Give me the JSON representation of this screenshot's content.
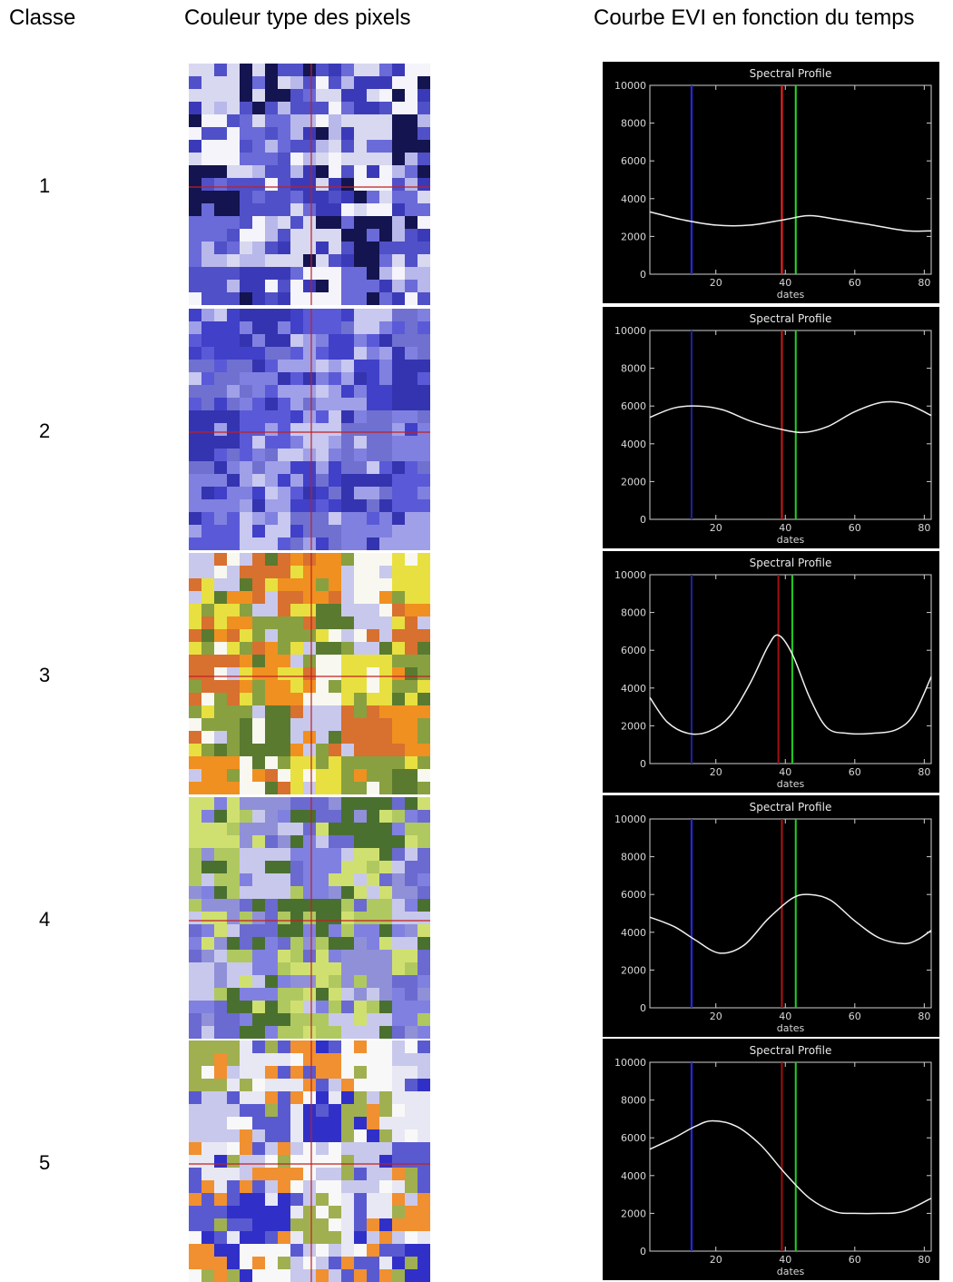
{
  "headers": {
    "classe": "Classe",
    "couleur": "Couleur type des pixels",
    "courbe": "Courbe EVI en fonction du temps"
  },
  "classes": [
    {
      "id": "1",
      "palette": [
        "#d8d8f0",
        "#6a6ad8",
        "#3a3ab8",
        "#141450",
        "#b8b8ea",
        "#f4f4fa",
        "#5050c8"
      ]
    },
    {
      "id": "2",
      "palette": [
        "#5a5ad8",
        "#4040c8",
        "#8080e0",
        "#c8c8f0",
        "#3434b0",
        "#a0a0e8",
        "#7070d0"
      ]
    },
    {
      "id": "3",
      "palette": [
        "#e8e040",
        "#f09020",
        "#c8c8ec",
        "#88a040",
        "#f8f8f0",
        "#d87030",
        "#5a7a30"
      ]
    },
    {
      "id": "4",
      "palette": [
        "#8080e0",
        "#b0c860",
        "#6a6ad0",
        "#d0e070",
        "#c8c8ec",
        "#4a7030",
        "#9090d8"
      ]
    },
    {
      "id": "5",
      "palette": [
        "#e8e8f4",
        "#3030c8",
        "#c8c8ec",
        "#f09030",
        "#a0b050",
        "#5a5ad0",
        "#f8f8f8"
      ]
    }
  ],
  "chart_data": [
    {
      "type": "line",
      "title": "Spectral Profile",
      "xlabel": "dates",
      "ylabel": "",
      "xlim": [
        1,
        82
      ],
      "ylim": [
        0,
        10000
      ],
      "xticks": [
        20,
        40,
        60,
        80
      ],
      "yticks": [
        0,
        2000,
        4000,
        6000,
        8000,
        10000
      ],
      "vlines": [
        {
          "x": 13,
          "color": "#2828ff"
        },
        {
          "x": 39,
          "color": "#ff2020"
        },
        {
          "x": 43,
          "color": "#20e020"
        }
      ],
      "x": [
        1,
        10,
        20,
        30,
        40,
        47,
        55,
        65,
        75,
        82
      ],
      "y": [
        3300,
        2900,
        2600,
        2600,
        2900,
        3100,
        2900,
        2600,
        2300,
        2300
      ]
    },
    {
      "type": "line",
      "title": "Spectral Profile",
      "xlabel": "dates",
      "ylabel": "",
      "xlim": [
        1,
        82
      ],
      "ylim": [
        0,
        10000
      ],
      "xticks": [
        20,
        40,
        60,
        80
      ],
      "yticks": [
        0,
        2000,
        4000,
        6000,
        8000,
        10000
      ],
      "vlines": [
        {
          "x": 13,
          "color": "#2020a0"
        },
        {
          "x": 39,
          "color": "#d01818"
        },
        {
          "x": 43,
          "color": "#20d020"
        }
      ],
      "x": [
        1,
        8,
        15,
        22,
        30,
        38,
        45,
        52,
        60,
        68,
        75,
        82
      ],
      "y": [
        5400,
        5900,
        6000,
        5800,
        5200,
        4800,
        4600,
        4900,
        5700,
        6200,
        6100,
        5500
      ]
    },
    {
      "type": "line",
      "title": "Spectral Profile",
      "xlabel": "dates",
      "ylabel": "",
      "xlim": [
        1,
        82
      ],
      "ylim": [
        0,
        10000
      ],
      "xticks": [
        20,
        40,
        60,
        80
      ],
      "yticks": [
        0,
        2000,
        4000,
        6000,
        8000,
        10000
      ],
      "vlines": [
        {
          "x": 13,
          "color": "#2020a0"
        },
        {
          "x": 38,
          "color": "#a01010"
        },
        {
          "x": 42,
          "color": "#20d020"
        }
      ],
      "x": [
        1,
        6,
        12,
        18,
        24,
        30,
        35,
        38,
        42,
        47,
        52,
        58,
        65,
        72,
        77,
        82
      ],
      "y": [
        3500,
        2200,
        1600,
        1700,
        2500,
        4300,
        6200,
        6800,
        5800,
        3500,
        1900,
        1600,
        1600,
        1800,
        2600,
        4600
      ]
    },
    {
      "type": "line",
      "title": "Spectral Profile",
      "xlabel": "dates",
      "ylabel": "",
      "xlim": [
        1,
        82
      ],
      "ylim": [
        0,
        10000
      ],
      "xticks": [
        20,
        40,
        60,
        80
      ],
      "yticks": [
        0,
        2000,
        4000,
        6000,
        8000,
        10000
      ],
      "vlines": [
        {
          "x": 13,
          "color": "#2828ff"
        },
        {
          "x": 39,
          "color": "#b01414"
        },
        {
          "x": 43,
          "color": "#20d020"
        }
      ],
      "x": [
        1,
        8,
        14,
        21,
        28,
        35,
        42,
        47,
        53,
        60,
        67,
        74,
        78,
        82
      ],
      "y": [
        4800,
        4300,
        3600,
        2900,
        3300,
        4700,
        5800,
        6000,
        5700,
        4600,
        3700,
        3400,
        3600,
        4100
      ]
    },
    {
      "type": "line",
      "title": "Spectral Profile",
      "xlabel": "dates",
      "ylabel": "",
      "xlim": [
        1,
        82
      ],
      "ylim": [
        0,
        10000
      ],
      "xticks": [
        20,
        40,
        60,
        80
      ],
      "yticks": [
        0,
        2000,
        4000,
        6000,
        8000,
        10000
      ],
      "vlines": [
        {
          "x": 13,
          "color": "#2828ff"
        },
        {
          "x": 39,
          "color": "#a01010"
        },
        {
          "x": 43,
          "color": "#20d020"
        }
      ],
      "x": [
        1,
        8,
        14,
        19,
        26,
        33,
        40,
        47,
        54,
        60,
        67,
        74,
        82
      ],
      "y": [
        5400,
        6000,
        6600,
        6900,
        6600,
        5600,
        4100,
        2800,
        2100,
        2000,
        2000,
        2100,
        2800
      ]
    }
  ]
}
